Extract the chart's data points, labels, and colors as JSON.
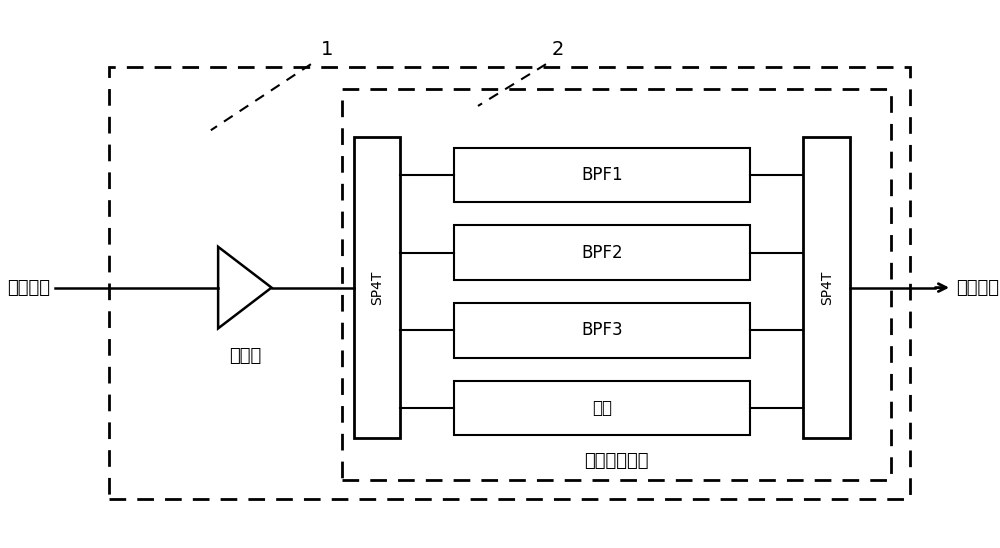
{
  "bg_color": "#ffffff",
  "line_color": "#000000",
  "label_rf_in": "射频输入",
  "label_rf_out": "射频输出",
  "label_amp": "放大器",
  "label_sp4t_left": "SP4T",
  "label_sp4t_right": "SP4T",
  "label_bpf1": "BPF1",
  "label_bpf2": "BPF2",
  "label_bpf3": "BPF3",
  "label_direct": "直通",
  "label_switch_filter": "开关滤波器组",
  "label_1": "1",
  "label_2": "2",
  "figsize": [
    10.0,
    5.48
  ],
  "dpi": 100
}
